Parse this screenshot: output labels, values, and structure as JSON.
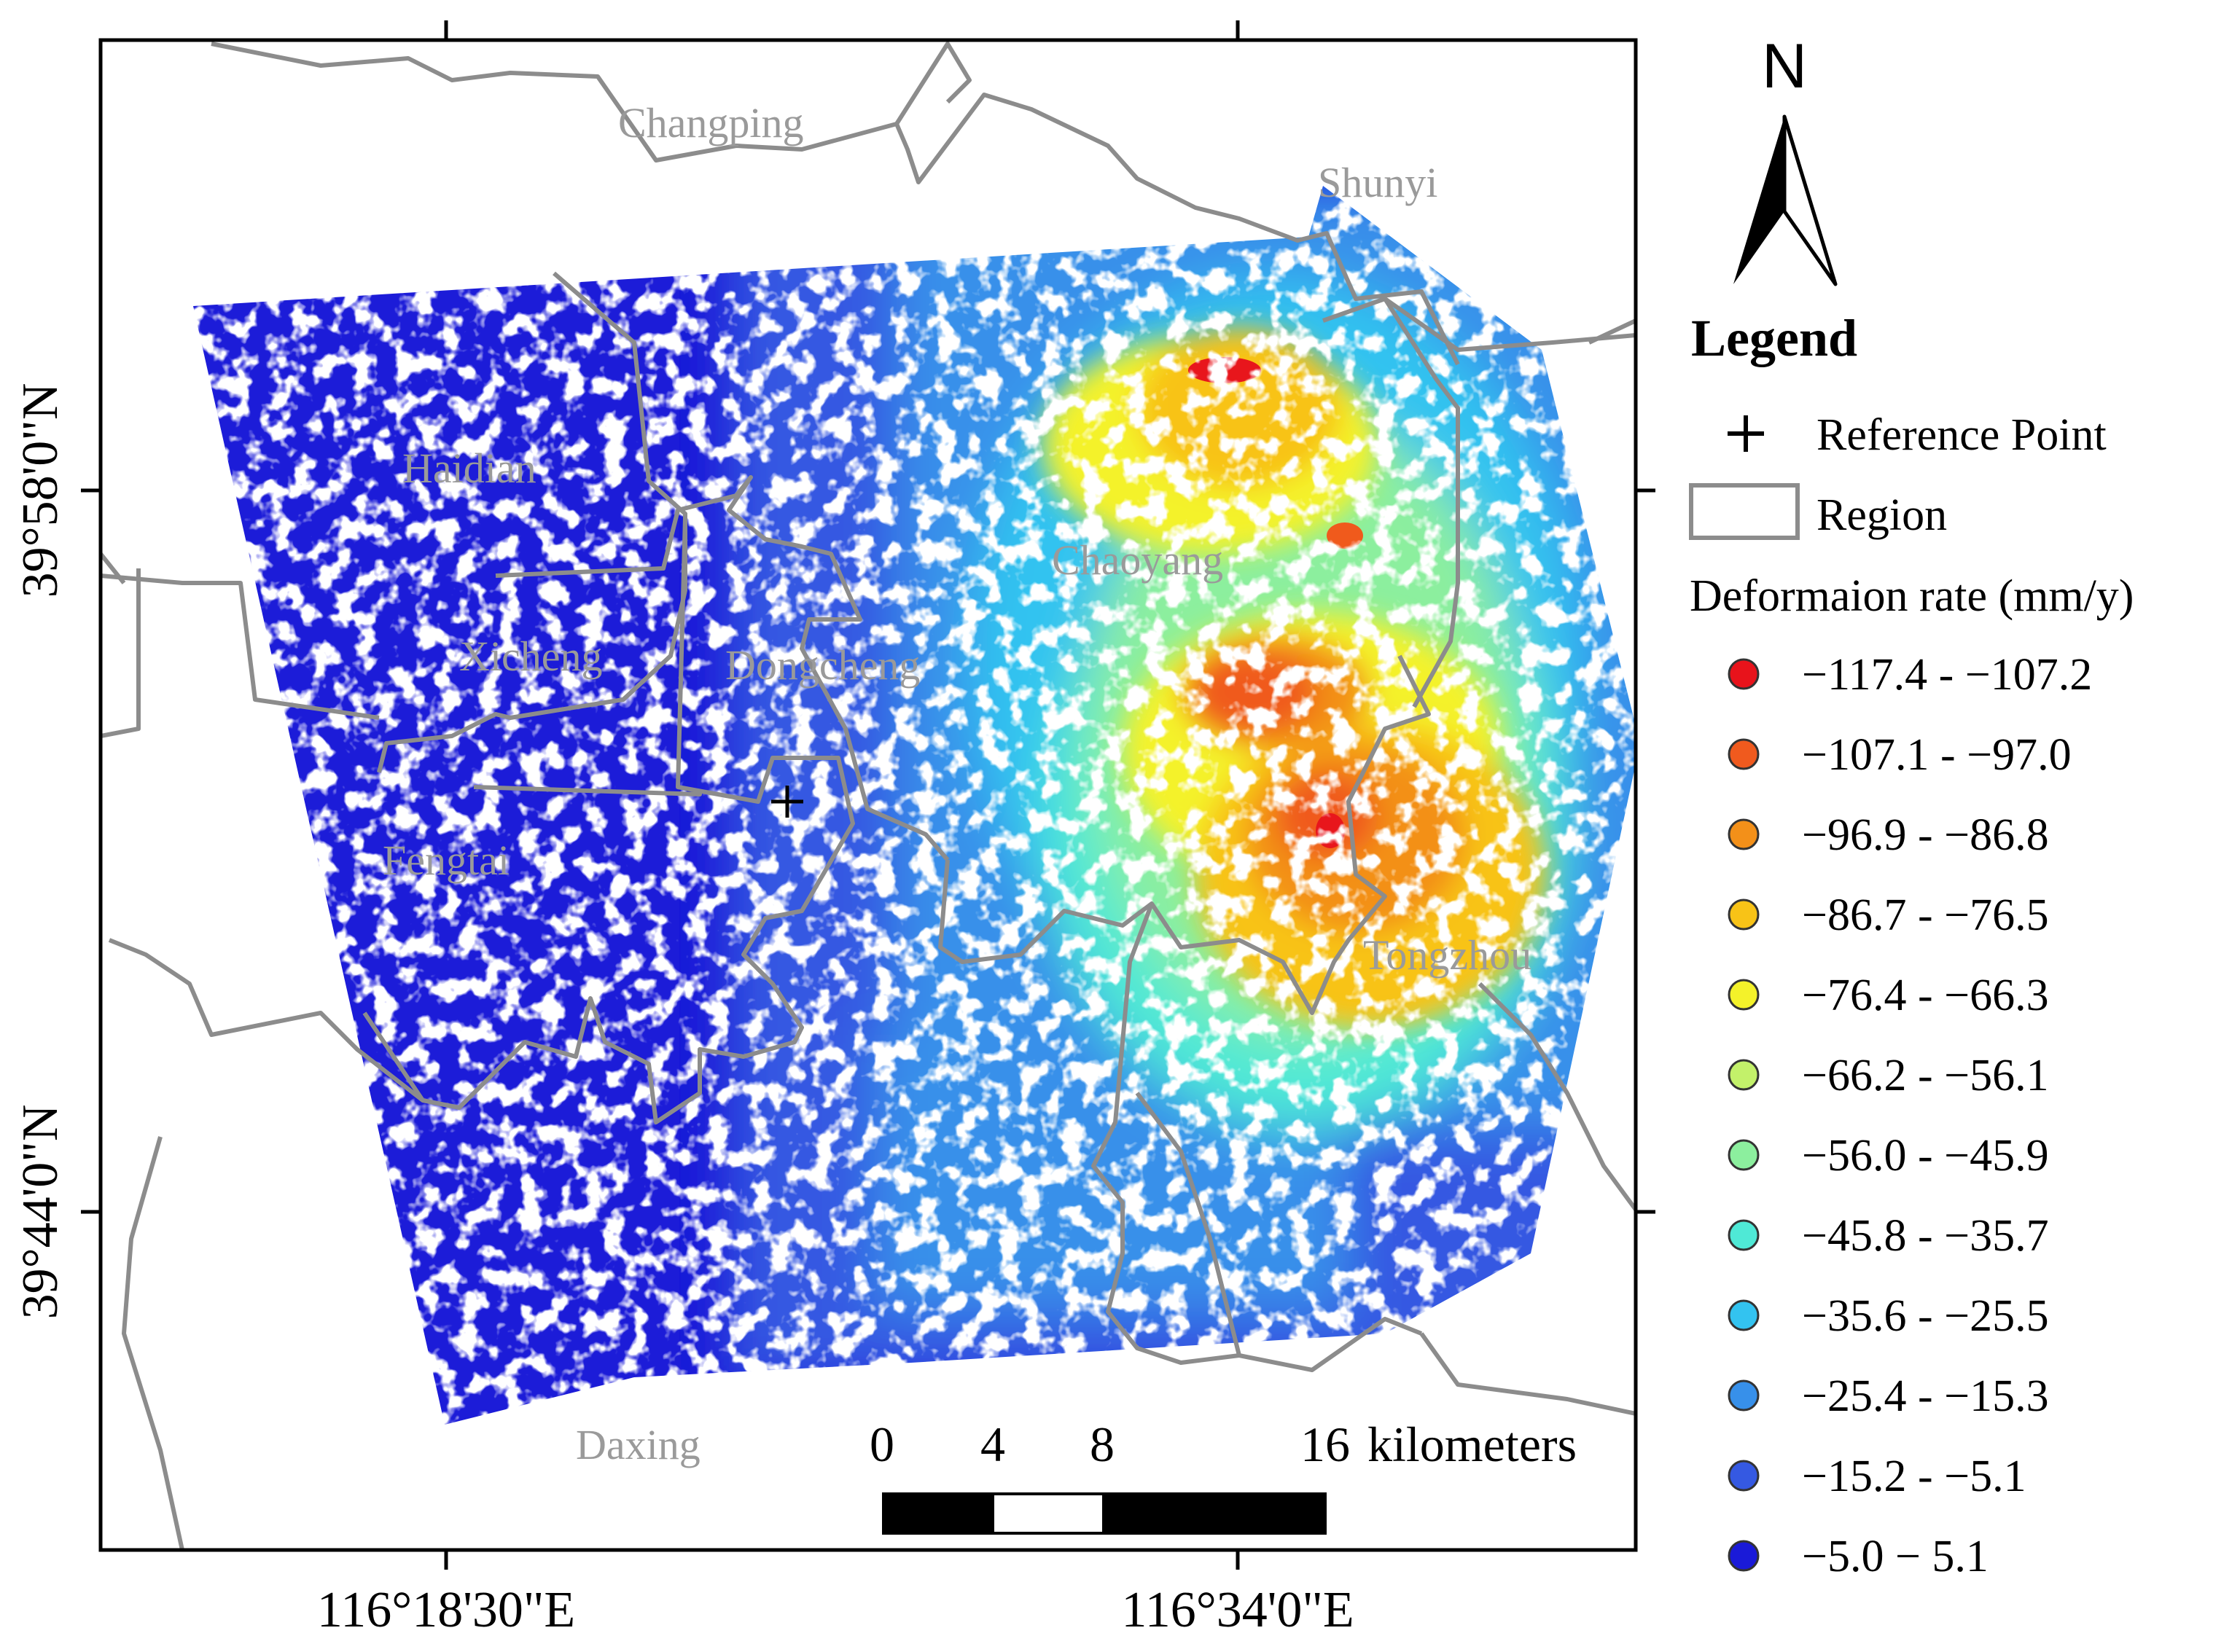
{
  "districts": {
    "changping": "Changping",
    "shunyi": "Shunyi",
    "haidian": "Haidian",
    "chaoyang": "Chaoyang",
    "xicheng": "Xicheng",
    "dongcheng": "Dongcheng",
    "fengtai": "Fengtai",
    "tongzhou": "Tongzhou",
    "daxing": "Daxing"
  },
  "axes": {
    "lat_top": "39°58'0\"N",
    "lat_bottom": "39°44'0\"N",
    "lon_left": "116°18'30\"E",
    "lon_right": "116°34'0\"E"
  },
  "scale_bar": {
    "ticks": [
      "0",
      "4",
      "8",
      "16"
    ],
    "unit": "kilometers"
  },
  "north_arrow": {
    "label": "N",
    "icon": "north-arrow-icon"
  },
  "legend": {
    "title": "Legend",
    "reference_point": "Reference Point",
    "region": "Region",
    "rate_title": "Deformaion rate (mm/y)",
    "classes": [
      {
        "label": "−117.4 - −107.2",
        "color": "#e8131b"
      },
      {
        "label": "−107.1 - −97.0",
        "color": "#f05a1e"
      },
      {
        "label": "−96.9 - −86.8",
        "color": "#f39019"
      },
      {
        "label": "−86.7 - −76.5",
        "color": "#f8c317"
      },
      {
        "label": "−76.4 - −66.3",
        "color": "#f4f22a"
      },
      {
        "label": "−66.2 - −56.1",
        "color": "#c3f16a"
      },
      {
        "label": "−56.0 - −45.9",
        "color": "#8cef9e"
      },
      {
        "label": "−45.8 - −35.7",
        "color": "#4fe9d6"
      },
      {
        "label": "−35.6 - −25.5",
        "color": "#33c3f0"
      },
      {
        "label": "−25.4 - −15.3",
        "color": "#3790ea"
      },
      {
        "label": "−15.2 - −5.1",
        "color": "#3559e2"
      },
      {
        "label": "−5.0 − 5.1",
        "color": "#1a1ad8"
      }
    ]
  },
  "colors": {
    "region_border": "#8c8c8c",
    "frame": "#000000"
  }
}
